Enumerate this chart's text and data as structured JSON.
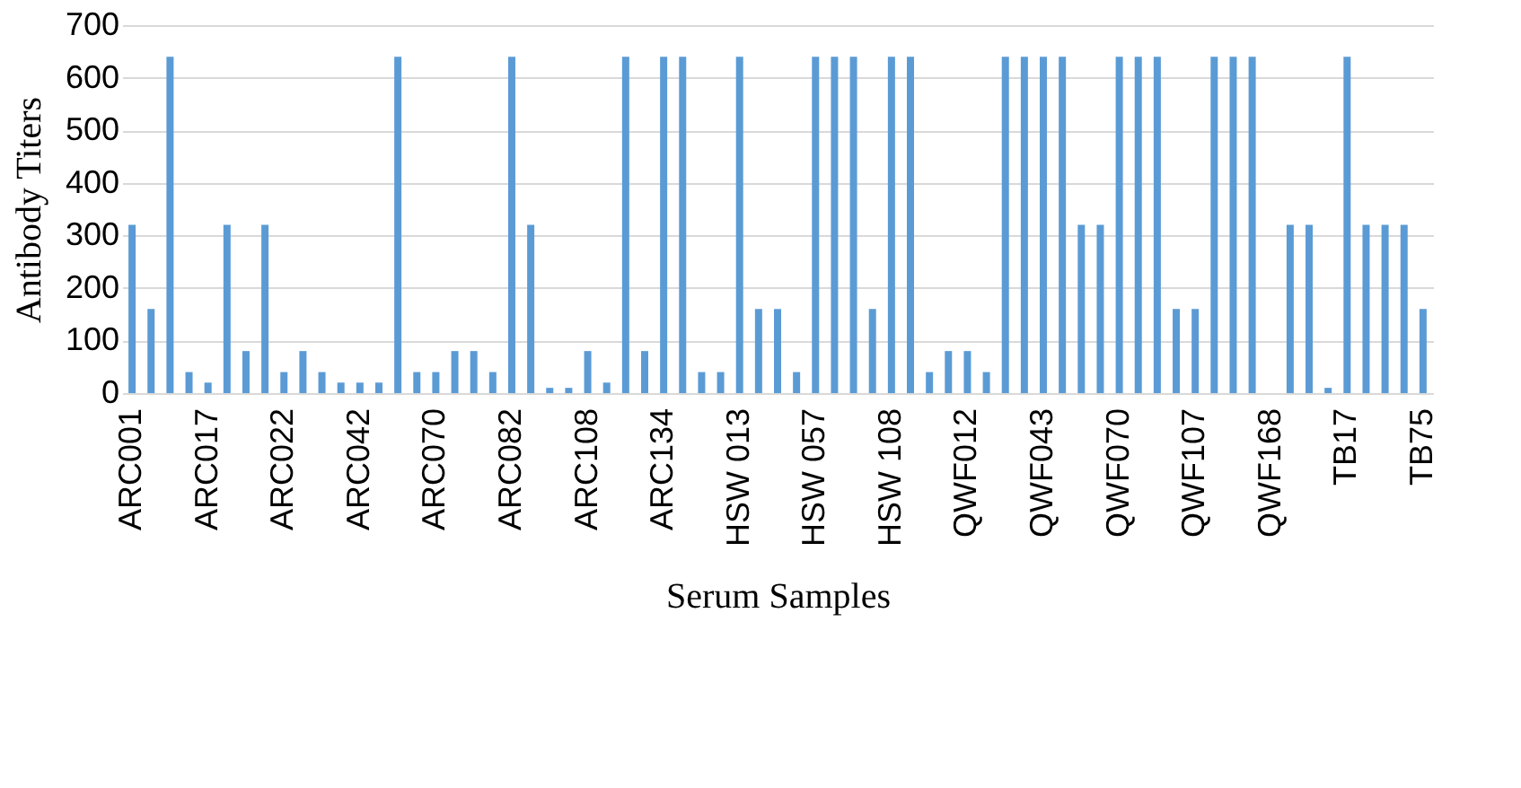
{
  "chart_data": {
    "type": "bar",
    "xlabel": "Serum Samples",
    "ylabel": "Antibody Titers",
    "categories": [
      "ARC001",
      null,
      null,
      null,
      "ARC017",
      null,
      null,
      null,
      "ARC022",
      null,
      null,
      null,
      "ARC042",
      null,
      null,
      null,
      "ARC070",
      null,
      null,
      null,
      "ARC082",
      null,
      null,
      null,
      "ARC108",
      null,
      null,
      null,
      "ARC134",
      null,
      null,
      null,
      "HSW 013",
      null,
      null,
      null,
      "HSW 057",
      null,
      null,
      null,
      "HSW 108",
      null,
      null,
      null,
      "QWF012",
      null,
      null,
      null,
      "QWF043",
      null,
      null,
      null,
      "QWF070",
      null,
      null,
      null,
      "QWF107",
      null,
      null,
      null,
      "QWF168",
      null,
      null,
      null,
      "TB17",
      null,
      null,
      null,
      "TB75"
    ],
    "values": [
      320,
      160,
      640,
      40,
      20,
      320,
      80,
      320,
      40,
      80,
      40,
      20,
      20,
      20,
      640,
      40,
      40,
      80,
      80,
      40,
      640,
      320,
      10,
      10,
      80,
      20,
      640,
      80,
      640,
      640,
      40,
      40,
      640,
      160,
      160,
      40,
      640,
      640,
      640,
      160,
      640,
      640,
      40,
      80,
      80,
      40,
      640,
      640,
      640,
      640,
      320,
      320,
      640,
      640,
      640,
      160,
      160,
      640,
      640,
      640,
      null,
      320,
      320,
      10,
      640,
      320,
      320,
      320,
      160
    ],
    "color": "#5b9bd5",
    "ylim": [
      0,
      700
    ],
    "yticks": [
      0,
      100,
      200,
      300,
      400,
      500,
      600,
      700
    ],
    "grid": "y"
  }
}
